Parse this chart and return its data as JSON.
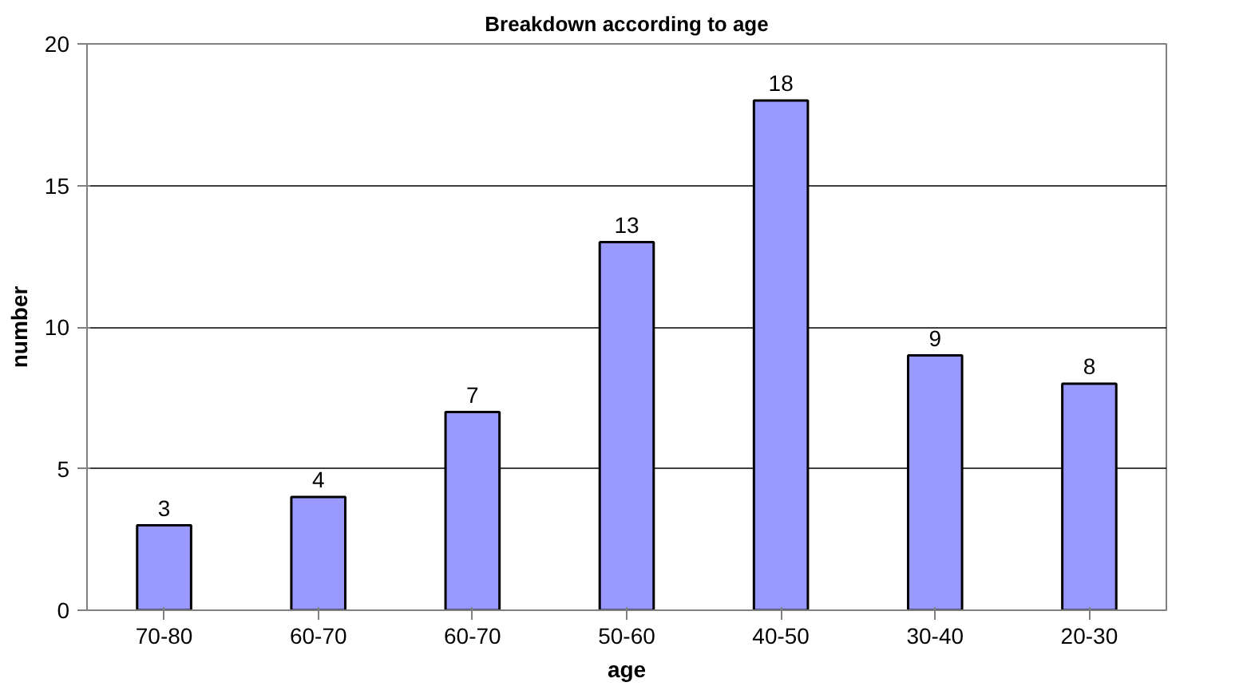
{
  "chart_data": {
    "type": "bar",
    "title": "Breakdown according to age",
    "xlabel": "age",
    "ylabel": "number",
    "categories": [
      "70-80",
      "60-70",
      "60-70",
      "50-60",
      "40-50",
      "30-40",
      "20-30"
    ],
    "values": [
      3,
      4,
      7,
      13,
      18,
      9,
      8
    ],
    "color": "#9999ff",
    "ylim": [
      0,
      20
    ],
    "yticks": [
      0,
      5,
      10,
      15,
      20
    ],
    "grid": "y",
    "data_labels": true
  }
}
